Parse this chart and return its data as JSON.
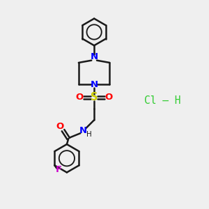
{
  "background_color": "#efefef",
  "bond_color": "#1a1a1a",
  "n_color": "#0000ff",
  "o_color": "#ff0000",
  "s_color": "#cccc00",
  "f_color": "#cc00cc",
  "hcl_color": "#33cc33",
  "figsize": [
    3.0,
    3.0
  ],
  "dpi": 100,
  "xlim": [
    0,
    10
  ],
  "ylim": [
    0,
    10
  ],
  "hcl_text": "Cl – H",
  "hcl_x": 7.8,
  "hcl_y": 5.2
}
